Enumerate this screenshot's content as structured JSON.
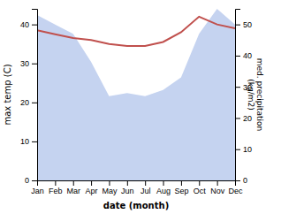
{
  "chart_data": {
    "type": "line",
    "xlabel": "date (month)",
    "ylabel": "max temp (C)",
    "y2label": "med. precipitation\n(kg/m2)",
    "categories": [
      "Jan",
      "Feb",
      "Mar",
      "Apr",
      "May",
      "Jun",
      "Jul",
      "Aug",
      "Sep",
      "Oct",
      "Nov",
      "Dec"
    ],
    "series": [
      {
        "type": "area",
        "axis": "y2",
        "color": "#c5d3f0",
        "values": [
          53,
          50,
          47,
          38,
          27,
          28,
          27,
          29,
          33,
          47,
          55,
          50
        ]
      },
      {
        "type": "line",
        "color": "#c0504d",
        "values": [
          38.5,
          37.5,
          36.5,
          36.0,
          35.0,
          34.5,
          34.5,
          35.5,
          38.0,
          42.0,
          40.0,
          39.0
        ]
      }
    ],
    "ylim": [
      0,
      44
    ],
    "yticks": [
      0,
      10,
      20,
      30,
      40
    ],
    "y2lim": [
      0,
      55
    ],
    "y2ticks": [
      0,
      10,
      20,
      30,
      40,
      50
    ]
  }
}
